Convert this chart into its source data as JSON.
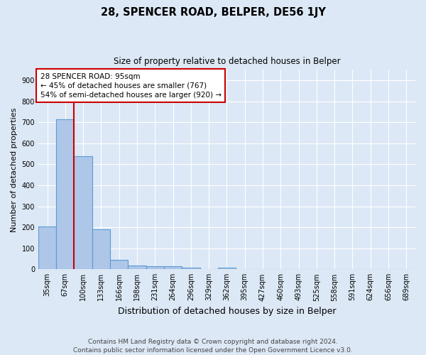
{
  "title": "28, SPENCER ROAD, BELPER, DE56 1JY",
  "subtitle": "Size of property relative to detached houses in Belper",
  "xlabel": "Distribution of detached houses by size in Belper",
  "ylabel": "Number of detached properties",
  "footer_line1": "Contains HM Land Registry data © Crown copyright and database right 2024.",
  "footer_line2": "Contains public sector information licensed under the Open Government Licence v3.0.",
  "categories": [
    "35sqm",
    "67sqm",
    "100sqm",
    "133sqm",
    "166sqm",
    "198sqm",
    "231sqm",
    "264sqm",
    "296sqm",
    "329sqm",
    "362sqm",
    "395sqm",
    "427sqm",
    "460sqm",
    "493sqm",
    "525sqm",
    "558sqm",
    "591sqm",
    "624sqm",
    "656sqm",
    "689sqm"
  ],
  "values": [
    203,
    713,
    537,
    192,
    46,
    18,
    14,
    13,
    9,
    0,
    9,
    0,
    0,
    0,
    0,
    0,
    0,
    0,
    0,
    0,
    0
  ],
  "bar_color": "#aec6e8",
  "bar_edge_color": "#5b9bd5",
  "background_color": "#dce8f5",
  "grid_color": "#ffffff",
  "vline_pos": 1.5,
  "vline_color": "#cc0000",
  "ylim": [
    0,
    950
  ],
  "yticks": [
    0,
    100,
    200,
    300,
    400,
    500,
    600,
    700,
    800,
    900
  ],
  "annotation_text_line1": "28 SPENCER ROAD: 95sqm",
  "annotation_text_line2": "← 45% of detached houses are smaller (767)",
  "annotation_text_line3": "54% of semi-detached houses are larger (920) →",
  "annotation_box_facecolor": "#ffffff",
  "annotation_box_edgecolor": "#cc0000",
  "title_fontsize": 10.5,
  "subtitle_fontsize": 8.5,
  "xlabel_fontsize": 9,
  "ylabel_fontsize": 8,
  "tick_fontsize": 7,
  "annotation_fontsize": 7.5,
  "footer_fontsize": 6.5,
  "footer_color": "#444444"
}
